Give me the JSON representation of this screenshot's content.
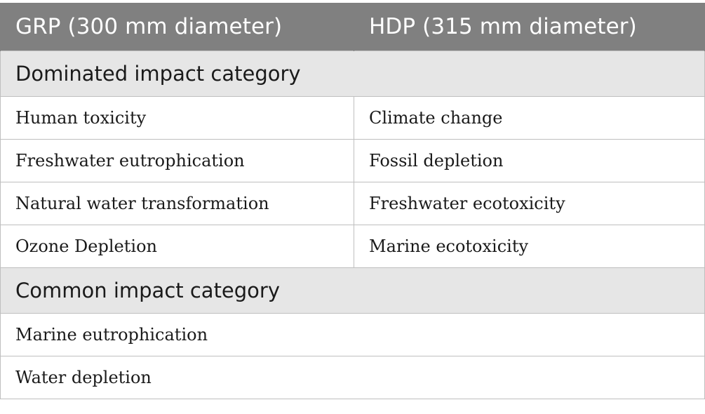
{
  "header": {
    "col1": "GRP (300 mm diameter)",
    "col2": "HDP (315 mm diameter)"
  },
  "dominated": {
    "title": "Dominated impact category",
    "rows": [
      {
        "grp": "Human toxicity",
        "hdp": "Climate change"
      },
      {
        "grp": "Freshwater eutrophication",
        "hdp": "Fossil depletion"
      },
      {
        "grp": "Natural water transformation",
        "hdp": "Freshwater ecotoxicity"
      },
      {
        "grp": "Ozone Depletion",
        "hdp": "Marine ecotoxicity"
      }
    ]
  },
  "common": {
    "title": "Common impact category",
    "rows": [
      "Marine eutrophication",
      "Water depletion"
    ]
  }
}
